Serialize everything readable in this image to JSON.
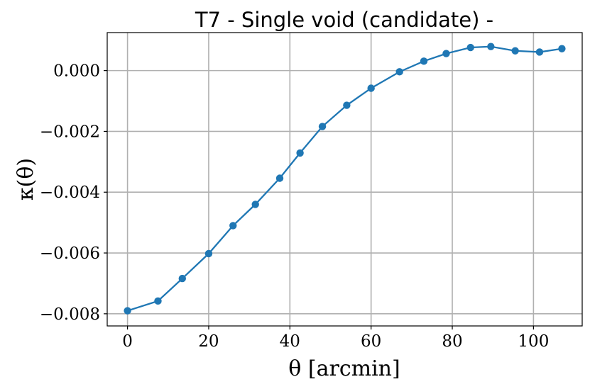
{
  "chart_data": {
    "type": "line",
    "title": "T7 - Single void (candidate) -",
    "xlabel": "θ [arcmin]",
    "ylabel": "κ(θ)",
    "xlim": [
      -5,
      112
    ],
    "ylim": [
      -0.0084,
      0.00125
    ],
    "xticks": [
      0,
      20,
      40,
      60,
      80,
      100
    ],
    "xtick_labels": [
      "0",
      "20",
      "40",
      "60",
      "80",
      "100"
    ],
    "yticks": [
      0.0,
      -0.002,
      -0.004,
      -0.006,
      -0.008
    ],
    "ytick_labels": [
      "0.000",
      "−0.002",
      "−0.004",
      "−0.006",
      "−0.008"
    ],
    "grid": true,
    "color": "#1f77b4",
    "series": [
      {
        "x": [
          0,
          7.5,
          13.5,
          20,
          26,
          31.5,
          37.5,
          42.5,
          48,
          54,
          60,
          67,
          73,
          78.5,
          84.5,
          89.5,
          95.5,
          101.5,
          107
        ],
        "y": [
          -0.0079,
          -0.00758,
          -0.00684,
          -0.00602,
          -0.0051,
          -0.0044,
          -0.00354,
          -0.00271,
          -0.00184,
          -0.00114,
          -0.00058,
          -4e-05,
          0.00031,
          0.00056,
          0.00076,
          0.00079,
          0.00065,
          0.00061,
          0.00072
        ]
      }
    ]
  }
}
